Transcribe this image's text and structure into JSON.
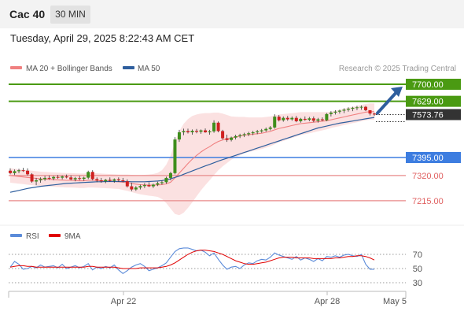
{
  "header": {
    "title": "Cac 40",
    "timeframe": "30 MIN"
  },
  "datetime": "Tuesday, April 29, 2025 8:22:43 AM CET",
  "legend_main": [
    {
      "label": "MA 20 + Bollinger Bands",
      "color": "#f08080"
    },
    {
      "label": "MA 50",
      "color": "#2f5f9e"
    }
  ],
  "copyright": "Research © 2025 Trading Central",
  "rsi_legend": [
    {
      "label": "RSI",
      "color": "#5b8bd9"
    },
    {
      "label": "9MA",
      "color": "#e00000"
    }
  ],
  "levels": [
    {
      "value": "7700.00",
      "style": "box",
      "color": "#4a9a12"
    },
    {
      "value": "7629.00",
      "style": "box",
      "color": "#4a9a12"
    },
    {
      "value": "7573.76",
      "style": "box",
      "color": "#333333"
    },
    {
      "value": "7395.00",
      "style": "box",
      "color": "#3d7de0"
    },
    {
      "value": "7320.00",
      "style": "text",
      "color": "#e06060"
    },
    {
      "value": "7215.00",
      "style": "text",
      "color": "#e06060"
    }
  ],
  "rsi_ticks": [
    "70",
    "50",
    "30"
  ],
  "x_ticks": [
    "Apr 22",
    "Apr 28",
    "May 5"
  ],
  "chart_data": [
    {
      "type": "candlestick",
      "title": "Cac 40",
      "ylim": [
        7130,
        7720
      ],
      "candles": [
        [
          7340,
          7350,
          7325,
          7330
        ],
        [
          7330,
          7345,
          7322,
          7338
        ],
        [
          7338,
          7348,
          7330,
          7342
        ],
        [
          7342,
          7352,
          7335,
          7340
        ],
        [
          7340,
          7350,
          7320,
          7325
        ],
        [
          7325,
          7330,
          7290,
          7295
        ],
        [
          7295,
          7310,
          7280,
          7300
        ],
        [
          7300,
          7312,
          7290,
          7305
        ],
        [
          7305,
          7318,
          7298,
          7310
        ],
        [
          7310,
          7320,
          7302,
          7308
        ],
        [
          7308,
          7318,
          7300,
          7314
        ],
        [
          7314,
          7322,
          7306,
          7311
        ],
        [
          7311,
          7320,
          7304,
          7316
        ],
        [
          7316,
          7324,
          7308,
          7312
        ],
        [
          7312,
          7320,
          7300,
          7304
        ],
        [
          7304,
          7314,
          7296,
          7309
        ],
        [
          7309,
          7318,
          7300,
          7306
        ],
        [
          7306,
          7315,
          7298,
          7311
        ],
        [
          7311,
          7340,
          7305,
          7335
        ],
        [
          7335,
          7342,
          7300,
          7305
        ],
        [
          7305,
          7312,
          7292,
          7300
        ],
        [
          7300,
          7310,
          7290,
          7296
        ],
        [
          7296,
          7306,
          7288,
          7302
        ],
        [
          7302,
          7312,
          7294,
          7298
        ],
        [
          7298,
          7308,
          7290,
          7304
        ],
        [
          7304,
          7312,
          7294,
          7300
        ],
        [
          7300,
          7310,
          7292,
          7296
        ],
        [
          7296,
          7304,
          7270,
          7275
        ],
        [
          7275,
          7290,
          7255,
          7262
        ],
        [
          7262,
          7276,
          7256,
          7270
        ],
        [
          7270,
          7282,
          7262,
          7276
        ],
        [
          7276,
          7288,
          7268,
          7280
        ],
        [
          7280,
          7292,
          7272,
          7275
        ],
        [
          7275,
          7286,
          7268,
          7282
        ],
        [
          7282,
          7294,
          7276,
          7288
        ],
        [
          7288,
          7300,
          7282,
          7292
        ],
        [
          7292,
          7315,
          7286,
          7310
        ],
        [
          7310,
          7335,
          7300,
          7330
        ],
        [
          7330,
          7480,
          7325,
          7470
        ],
        [
          7470,
          7510,
          7460,
          7500
        ],
        [
          7500,
          7515,
          7488,
          7505
        ],
        [
          7505,
          7515,
          7495,
          7500
        ],
        [
          7500,
          7512,
          7490,
          7506
        ],
        [
          7506,
          7514,
          7496,
          7502
        ],
        [
          7502,
          7512,
          7494,
          7508
        ],
        [
          7508,
          7516,
          7498,
          7500
        ],
        [
          7500,
          7510,
          7490,
          7504
        ],
        [
          7504,
          7550,
          7498,
          7540
        ],
        [
          7540,
          7545,
          7500,
          7505
        ],
        [
          7505,
          7510,
          7470,
          7475
        ],
        [
          7475,
          7490,
          7460,
          7468
        ],
        [
          7468,
          7482,
          7462,
          7478
        ],
        [
          7478,
          7490,
          7470,
          7484
        ],
        [
          7484,
          7494,
          7476,
          7488
        ],
        [
          7488,
          7498,
          7480,
          7492
        ],
        [
          7492,
          7502,
          7484,
          7496
        ],
        [
          7496,
          7506,
          7488,
          7500
        ],
        [
          7500,
          7510,
          7492,
          7504
        ],
        [
          7504,
          7514,
          7498,
          7508
        ],
        [
          7508,
          7520,
          7502,
          7514
        ],
        [
          7514,
          7526,
          7508,
          7520
        ],
        [
          7520,
          7575,
          7515,
          7565
        ],
        [
          7565,
          7572,
          7545,
          7550
        ],
        [
          7550,
          7566,
          7544,
          7560
        ],
        [
          7560,
          7568,
          7548,
          7554
        ],
        [
          7554,
          7566,
          7548,
          7560
        ],
        [
          7560,
          7568,
          7542,
          7546
        ],
        [
          7546,
          7560,
          7540,
          7556
        ],
        [
          7556,
          7566,
          7548,
          7552
        ],
        [
          7552,
          7564,
          7546,
          7558
        ],
        [
          7558,
          7566,
          7542,
          7548
        ],
        [
          7548,
          7560,
          7540,
          7554
        ],
        [
          7554,
          7562,
          7546,
          7550
        ],
        [
          7550,
          7580,
          7546,
          7576
        ],
        [
          7576,
          7588,
          7566,
          7582
        ],
        [
          7582,
          7592,
          7574,
          7586
        ],
        [
          7586,
          7594,
          7578,
          7590
        ],
        [
          7590,
          7600,
          7580,
          7594
        ],
        [
          7594,
          7604,
          7586,
          7598
        ],
        [
          7598,
          7606,
          7588,
          7602
        ],
        [
          7602,
          7610,
          7592,
          7604
        ],
        [
          7604,
          7612,
          7594,
          7606
        ],
        [
          7606,
          7610,
          7588,
          7592
        ],
        [
          7592,
          7590,
          7570,
          7578
        ],
        [
          7578,
          7582,
          7568,
          7574
        ]
      ],
      "ma20": [
        7320,
        7318,
        7316,
        7314,
        7312,
        7310,
        7308,
        7306,
        7305,
        7304,
        7303,
        7302,
        7301,
        7300,
        7300,
        7299,
        7298,
        7298,
        7300,
        7300,
        7299,
        7298,
        7297,
        7296,
        7295,
        7294,
        7292,
        7290,
        7287,
        7284,
        7282,
        7281,
        7280,
        7280,
        7281,
        7282,
        7285,
        7292,
        7310,
        7330,
        7350,
        7370,
        7388,
        7404,
        7418,
        7430,
        7440,
        7452,
        7462,
        7468,
        7472,
        7476,
        7480,
        7484,
        7488,
        7490,
        7492,
        7494,
        7496,
        7500,
        7504,
        7510,
        7516,
        7520,
        7524,
        7528,
        7532,
        7536,
        7538,
        7540,
        7542,
        7544,
        7546,
        7548,
        7552,
        7556,
        7560,
        7564,
        7568,
        7572,
        7576,
        7580,
        7584,
        7586,
        7586
      ],
      "ma50": [
        7250,
        7254,
        7258,
        7262,
        7266,
        7269,
        7272,
        7275,
        7277,
        7279,
        7281,
        7283,
        7285,
        7287,
        7288,
        7289,
        7290,
        7291,
        7292,
        7293,
        7294,
        7294,
        7295,
        7295,
        7295,
        7295,
        7295,
        7295,
        7294,
        7294,
        7294,
        7294,
        7295,
        7296,
        7297,
        7299,
        7302,
        7306,
        7312,
        7318,
        7325,
        7332,
        7339,
        7346,
        7353,
        7360,
        7366,
        7373,
        7380,
        7386,
        7392,
        7398,
        7404,
        7410,
        7416,
        7422,
        7428,
        7434,
        7440,
        7446,
        7452,
        7458,
        7464,
        7470,
        7476,
        7482,
        7488,
        7494,
        7500,
        7506,
        7512,
        7518,
        7522,
        7526,
        7530,
        7534,
        7538,
        7541,
        7544,
        7547,
        7550,
        7553,
        7556,
        7559,
        7562
      ],
      "bollinger_band_width": [
        30,
        30,
        30,
        30,
        30,
        30,
        30,
        30,
        30,
        30,
        30,
        30,
        30,
        30,
        30,
        30,
        30,
        30,
        30,
        30,
        30,
        30,
        30,
        30,
        30,
        30,
        32,
        34,
        36,
        38,
        40,
        42,
        44,
        46,
        50,
        60,
        80,
        110,
        150,
        175,
        185,
        185,
        180,
        170,
        160,
        150,
        140,
        130,
        120,
        110,
        100,
        90,
        85,
        80,
        76,
        72,
        70,
        68,
        66,
        64,
        62,
        60,
        58,
        56,
        54,
        52,
        50,
        48,
        46,
        44,
        42,
        40,
        38,
        36,
        34,
        34,
        34,
        34,
        34,
        34,
        34,
        34,
        34,
        34,
        34
      ],
      "horizontal_levels": [
        7700,
        7629,
        7573.76,
        7395,
        7320,
        7215
      ],
      "target_arrow": {
        "from": 7580,
        "to": 7700
      }
    },
    {
      "type": "line",
      "title": "RSI",
      "ylim": [
        20,
        80
      ],
      "y_ticks": [
        70,
        50,
        30
      ],
      "series": [
        {
          "name": "RSI",
          "values": [
            52,
            60,
            56,
            49,
            50,
            53,
            51,
            55,
            52,
            53,
            54,
            51,
            56,
            50,
            52,
            54,
            51,
            53,
            57,
            48,
            52,
            50,
            53,
            51,
            55,
            48,
            43,
            47,
            52,
            55,
            57,
            53,
            47,
            49,
            51,
            54,
            58,
            66,
            74,
            78,
            79,
            79,
            77,
            75,
            76,
            73,
            68,
            72,
            63,
            55,
            49,
            52,
            53,
            50,
            55,
            58,
            57,
            61,
            63,
            62,
            66,
            72,
            69,
            67,
            65,
            63,
            67,
            62,
            65,
            63,
            60,
            64,
            61,
            67,
            66,
            68,
            66,
            69,
            70,
            68,
            67,
            70,
            56,
            49,
            49
          ]
        },
        {
          "name": "9MA",
          "values": [
            52,
            53,
            54,
            54,
            53,
            53,
            52,
            52,
            52,
            52,
            52,
            52,
            52,
            52,
            52,
            52,
            52,
            52,
            53,
            53,
            52,
            52,
            52,
            52,
            52,
            51,
            50,
            50,
            50,
            50,
            51,
            51,
            51,
            51,
            51,
            52,
            53,
            55,
            58,
            62,
            66,
            70,
            73,
            75,
            76,
            76,
            75,
            74,
            72,
            70,
            67,
            64,
            61,
            59,
            57,
            56,
            56,
            57,
            58,
            59,
            61,
            63,
            65,
            66,
            66,
            66,
            65,
            65,
            65,
            65,
            64,
            64,
            64,
            64,
            64,
            65,
            65,
            66,
            67,
            67,
            68,
            68,
            67,
            65,
            62
          ]
        }
      ]
    }
  ]
}
